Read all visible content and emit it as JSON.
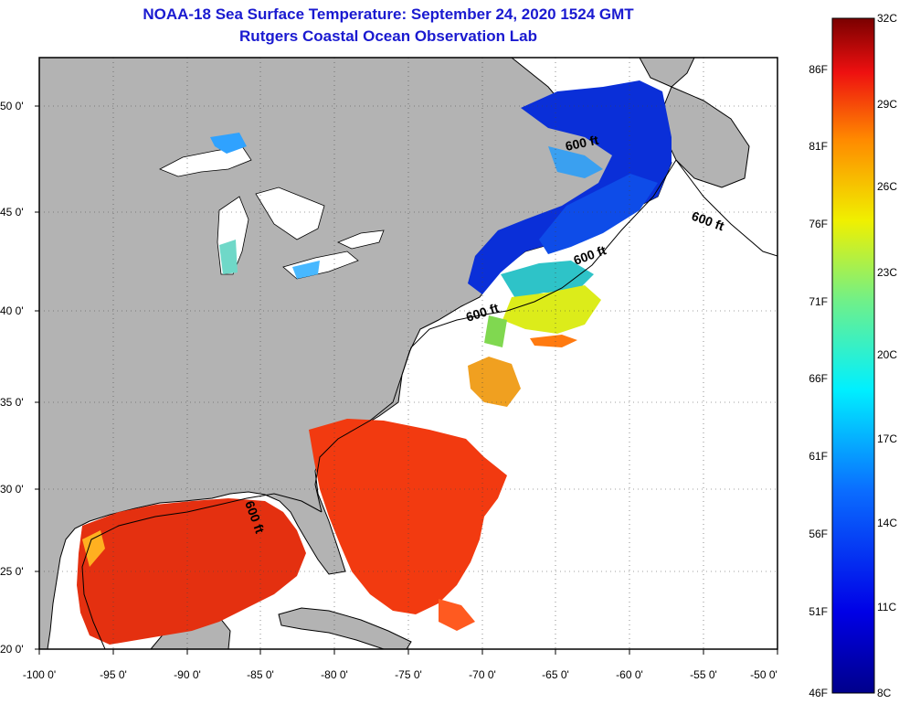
{
  "header": {
    "title": "NOAA-18 Sea Surface Temperature:  September 24, 2020 1524 GMT",
    "subtitle": "Rutgers Coastal Ocean Observation Lab"
  },
  "map": {
    "lat_labels": [
      "50 0'",
      "45 0'",
      "40 0'",
      "35 0'",
      "30 0'",
      "25 0'",
      "20 0'"
    ],
    "lon_labels": [
      "-100 0'",
      "-95 0'",
      "-90 0'",
      "-85 0'",
      "-80 0'",
      "-75 0'",
      "-70 0'",
      "-65 0'",
      "-60 0'",
      "-55 0'",
      "-50 0'"
    ],
    "contour_label": "600 ft",
    "colors": {
      "land": "#b3b3b3",
      "no_data": "#ffffff",
      "title": "#1a1ad0"
    }
  },
  "colorbar": {
    "celsius": [
      "32C",
      "29C",
      "26C",
      "23C",
      "20C",
      "17C",
      "14C",
      "11C",
      "8C"
    ],
    "fahrenheit": [
      "86F",
      "81F",
      "76F",
      "71F",
      "66F",
      "61F",
      "56F",
      "51F",
      "46F"
    ]
  }
}
